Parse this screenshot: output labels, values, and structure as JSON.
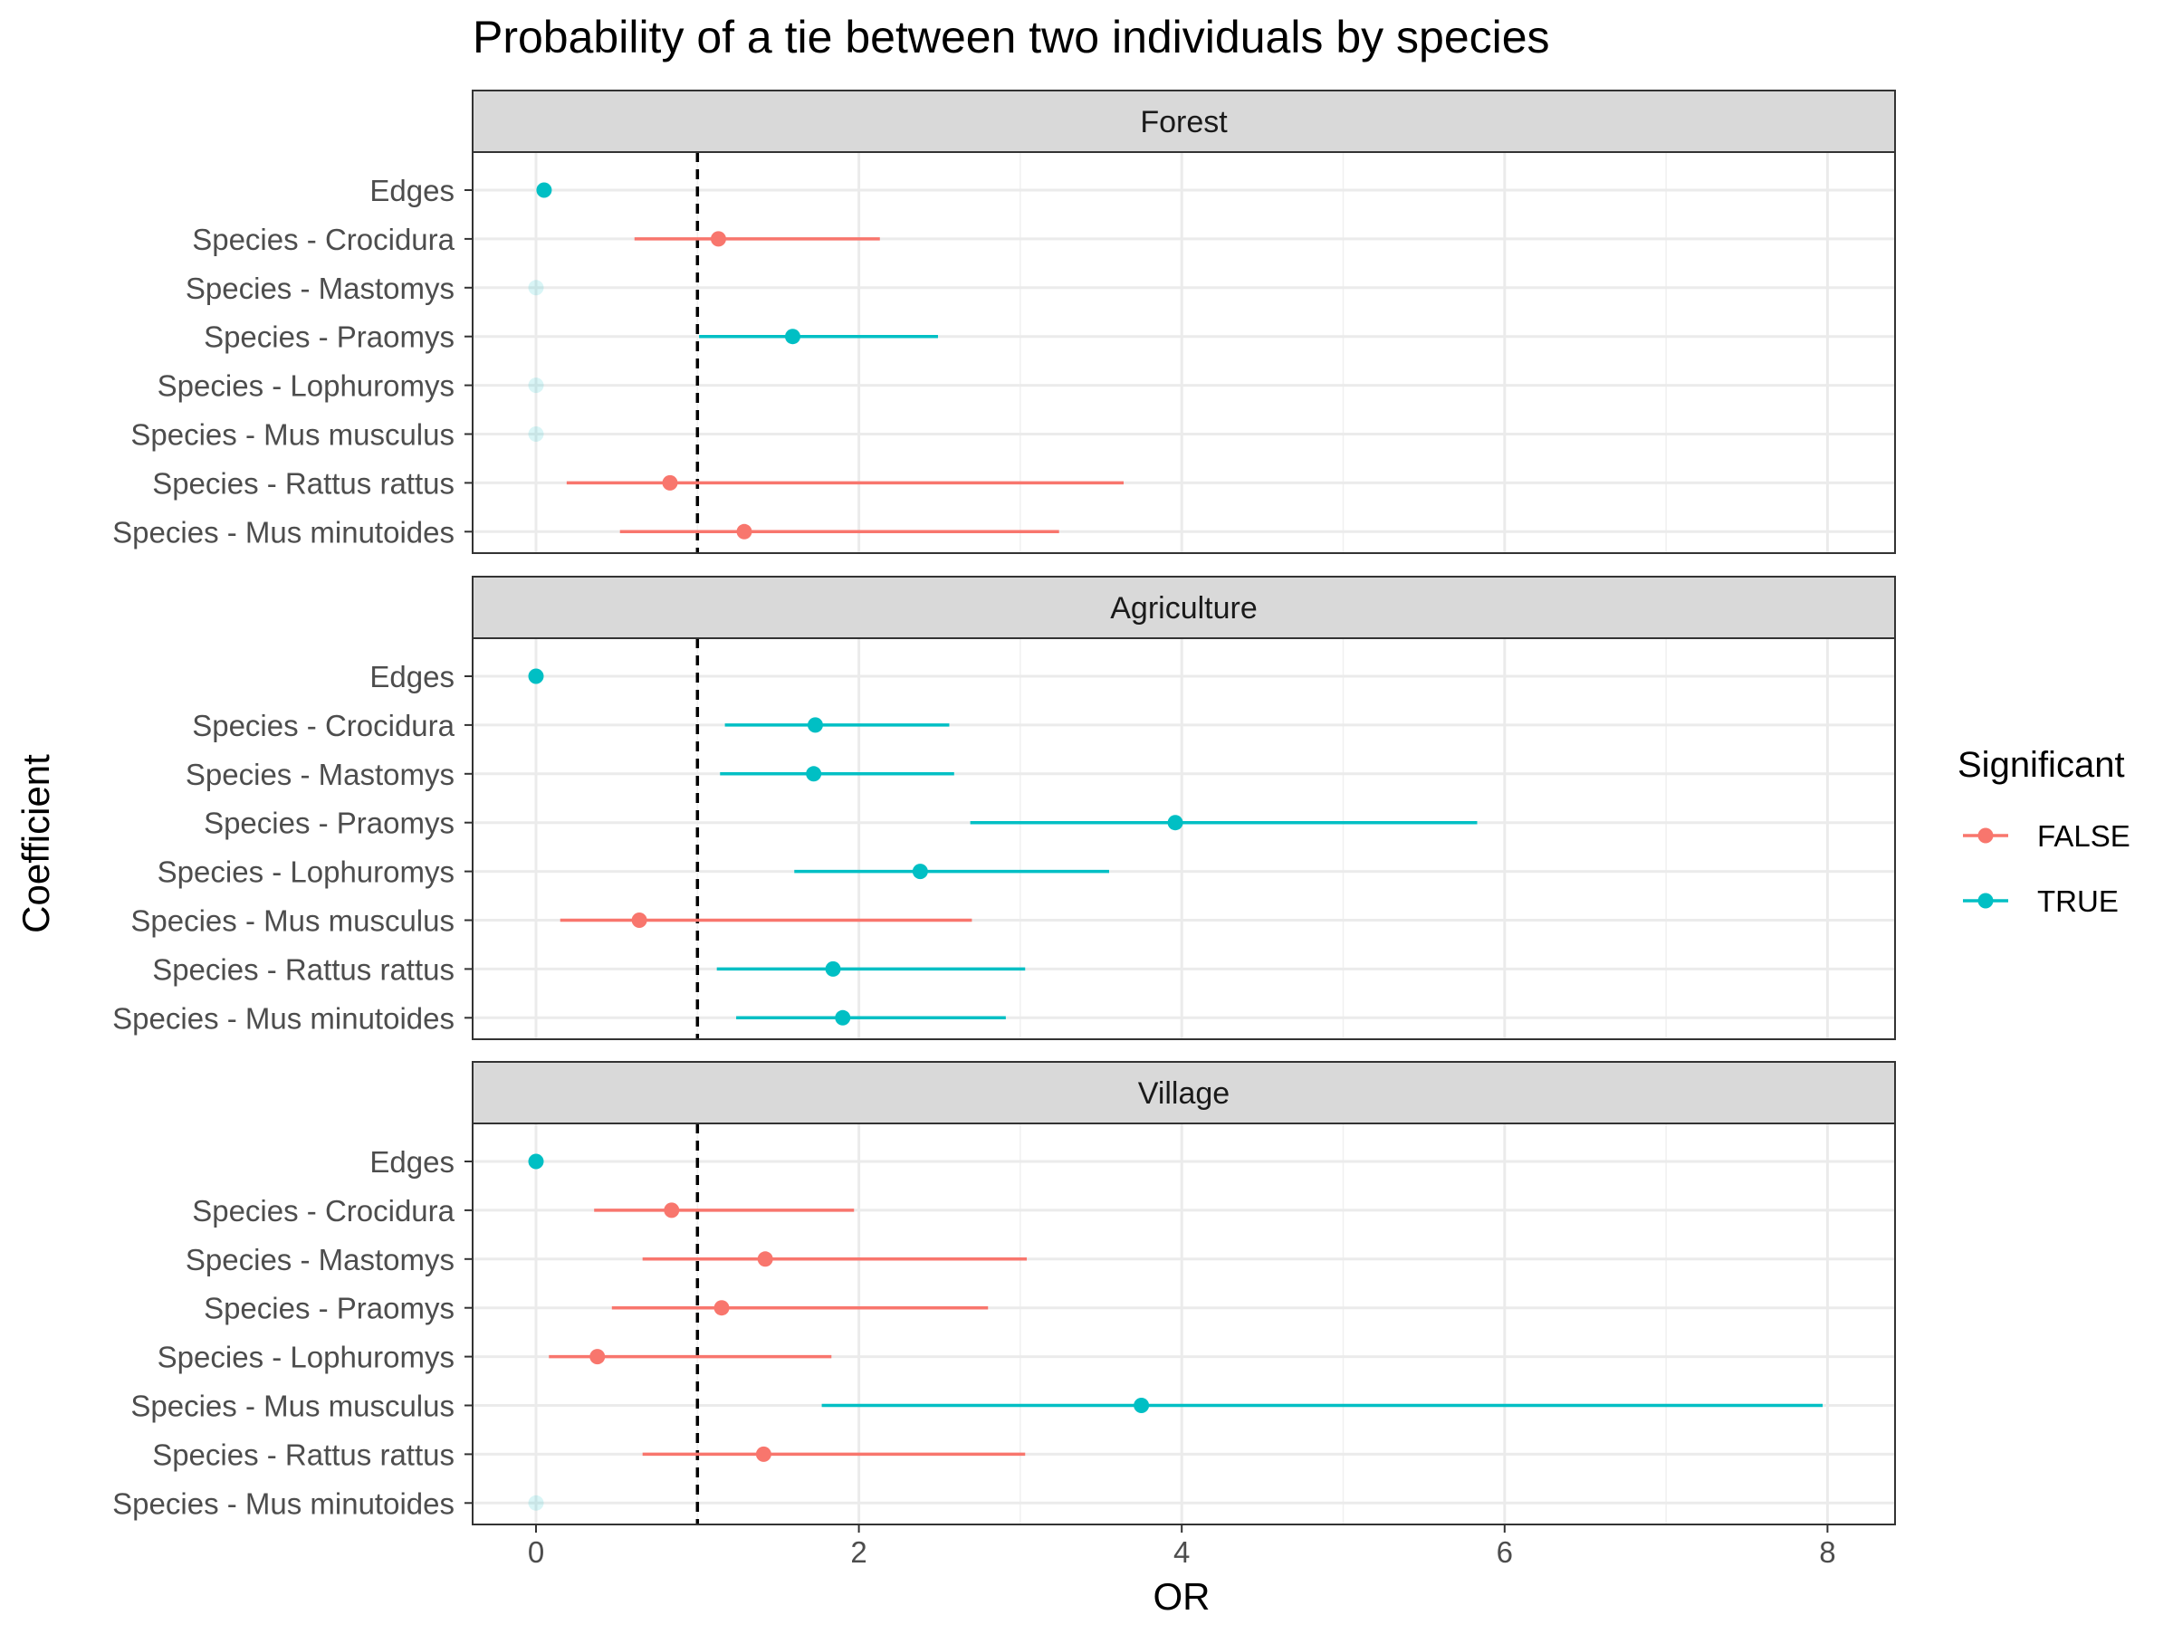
{
  "chart_data": {
    "type": "scatter",
    "subtype": "forest-plot-point-range",
    "title": "Probability of a tie between two individuals by species",
    "xlabel": "OR",
    "ylabel": "Coefficient",
    "xlim": [
      -0.4,
      8.4
    ],
    "xticks": [
      0,
      2,
      4,
      6,
      8
    ],
    "reference_line": {
      "x": 1,
      "style": "dashed",
      "color": "#000000"
    },
    "grid": true,
    "legend": {
      "title": "Significant",
      "position": "right",
      "entries": [
        {
          "label": "FALSE",
          "color": "#F8766D"
        },
        {
          "label": "TRUE",
          "color": "#00BFC4"
        }
      ]
    },
    "coefficients": [
      "Edges",
      "Species - Crocidura",
      "Species - Mastomys",
      "Species - Praomys",
      "Species - Lophuromys",
      "Species - Mus musculus",
      "Species - Rattus rattus",
      "Species - Mus minutoides"
    ],
    "panels": [
      {
        "name": "Forest",
        "points": [
          {
            "coef": "Edges",
            "or": 0.05,
            "low": null,
            "high": null,
            "significant": "TRUE"
          },
          {
            "coef": "Species - Crocidura",
            "or": 1.13,
            "low": 0.61,
            "high": 2.13,
            "significant": "FALSE"
          },
          {
            "coef": "Species - Mastomys",
            "or": 0.0,
            "low": null,
            "high": null,
            "significant": "TRUE",
            "faded": true
          },
          {
            "coef": "Species - Praomys",
            "or": 1.59,
            "low": 1.01,
            "high": 2.49,
            "significant": "TRUE"
          },
          {
            "coef": "Species - Lophuromys",
            "or": 0.0,
            "low": null,
            "high": null,
            "significant": "TRUE",
            "faded": true
          },
          {
            "coef": "Species - Mus musculus",
            "or": 0.0,
            "low": null,
            "high": null,
            "significant": "TRUE",
            "faded": true
          },
          {
            "coef": "Species - Rattus rattus",
            "or": 0.83,
            "low": 0.19,
            "high": 3.64,
            "significant": "FALSE"
          },
          {
            "coef": "Species - Mus minutoides",
            "or": 1.29,
            "low": 0.52,
            "high": 3.24,
            "significant": "FALSE"
          }
        ]
      },
      {
        "name": "Agriculture",
        "points": [
          {
            "coef": "Edges",
            "or": 0.0,
            "low": null,
            "high": null,
            "significant": "TRUE"
          },
          {
            "coef": "Species - Crocidura",
            "or": 1.73,
            "low": 1.17,
            "high": 2.56,
            "significant": "TRUE"
          },
          {
            "coef": "Species - Mastomys",
            "or": 1.72,
            "low": 1.14,
            "high": 2.59,
            "significant": "TRUE"
          },
          {
            "coef": "Species - Praomys",
            "or": 3.96,
            "low": 2.69,
            "high": 5.83,
            "significant": "TRUE"
          },
          {
            "coef": "Species - Lophuromys",
            "or": 2.38,
            "low": 1.6,
            "high": 3.55,
            "significant": "TRUE"
          },
          {
            "coef": "Species - Mus musculus",
            "or": 0.64,
            "low": 0.15,
            "high": 2.7,
            "significant": "FALSE"
          },
          {
            "coef": "Species - Rattus rattus",
            "or": 1.84,
            "low": 1.12,
            "high": 3.03,
            "significant": "TRUE"
          },
          {
            "coef": "Species - Mus minutoides",
            "or": 1.9,
            "low": 1.24,
            "high": 2.91,
            "significant": "TRUE"
          }
        ]
      },
      {
        "name": "Village",
        "points": [
          {
            "coef": "Edges",
            "or": 0.0,
            "low": null,
            "high": null,
            "significant": "TRUE"
          },
          {
            "coef": "Species - Crocidura",
            "or": 0.84,
            "low": 0.36,
            "high": 1.97,
            "significant": "FALSE"
          },
          {
            "coef": "Species - Mastomys",
            "or": 1.42,
            "low": 0.66,
            "high": 3.04,
            "significant": "FALSE"
          },
          {
            "coef": "Species - Praomys",
            "or": 1.15,
            "low": 0.47,
            "high": 2.8,
            "significant": "FALSE"
          },
          {
            "coef": "Species - Lophuromys",
            "or": 0.38,
            "low": 0.08,
            "high": 1.83,
            "significant": "FALSE"
          },
          {
            "coef": "Species - Mus musculus",
            "or": 3.75,
            "low": 1.77,
            "high": 7.97,
            "significant": "TRUE"
          },
          {
            "coef": "Species - Rattus rattus",
            "or": 1.41,
            "low": 0.66,
            "high": 3.03,
            "significant": "FALSE"
          },
          {
            "coef": "Species - Mus minutoides",
            "or": 0.0,
            "low": null,
            "high": null,
            "significant": "TRUE",
            "faded": true
          }
        ]
      }
    ]
  }
}
